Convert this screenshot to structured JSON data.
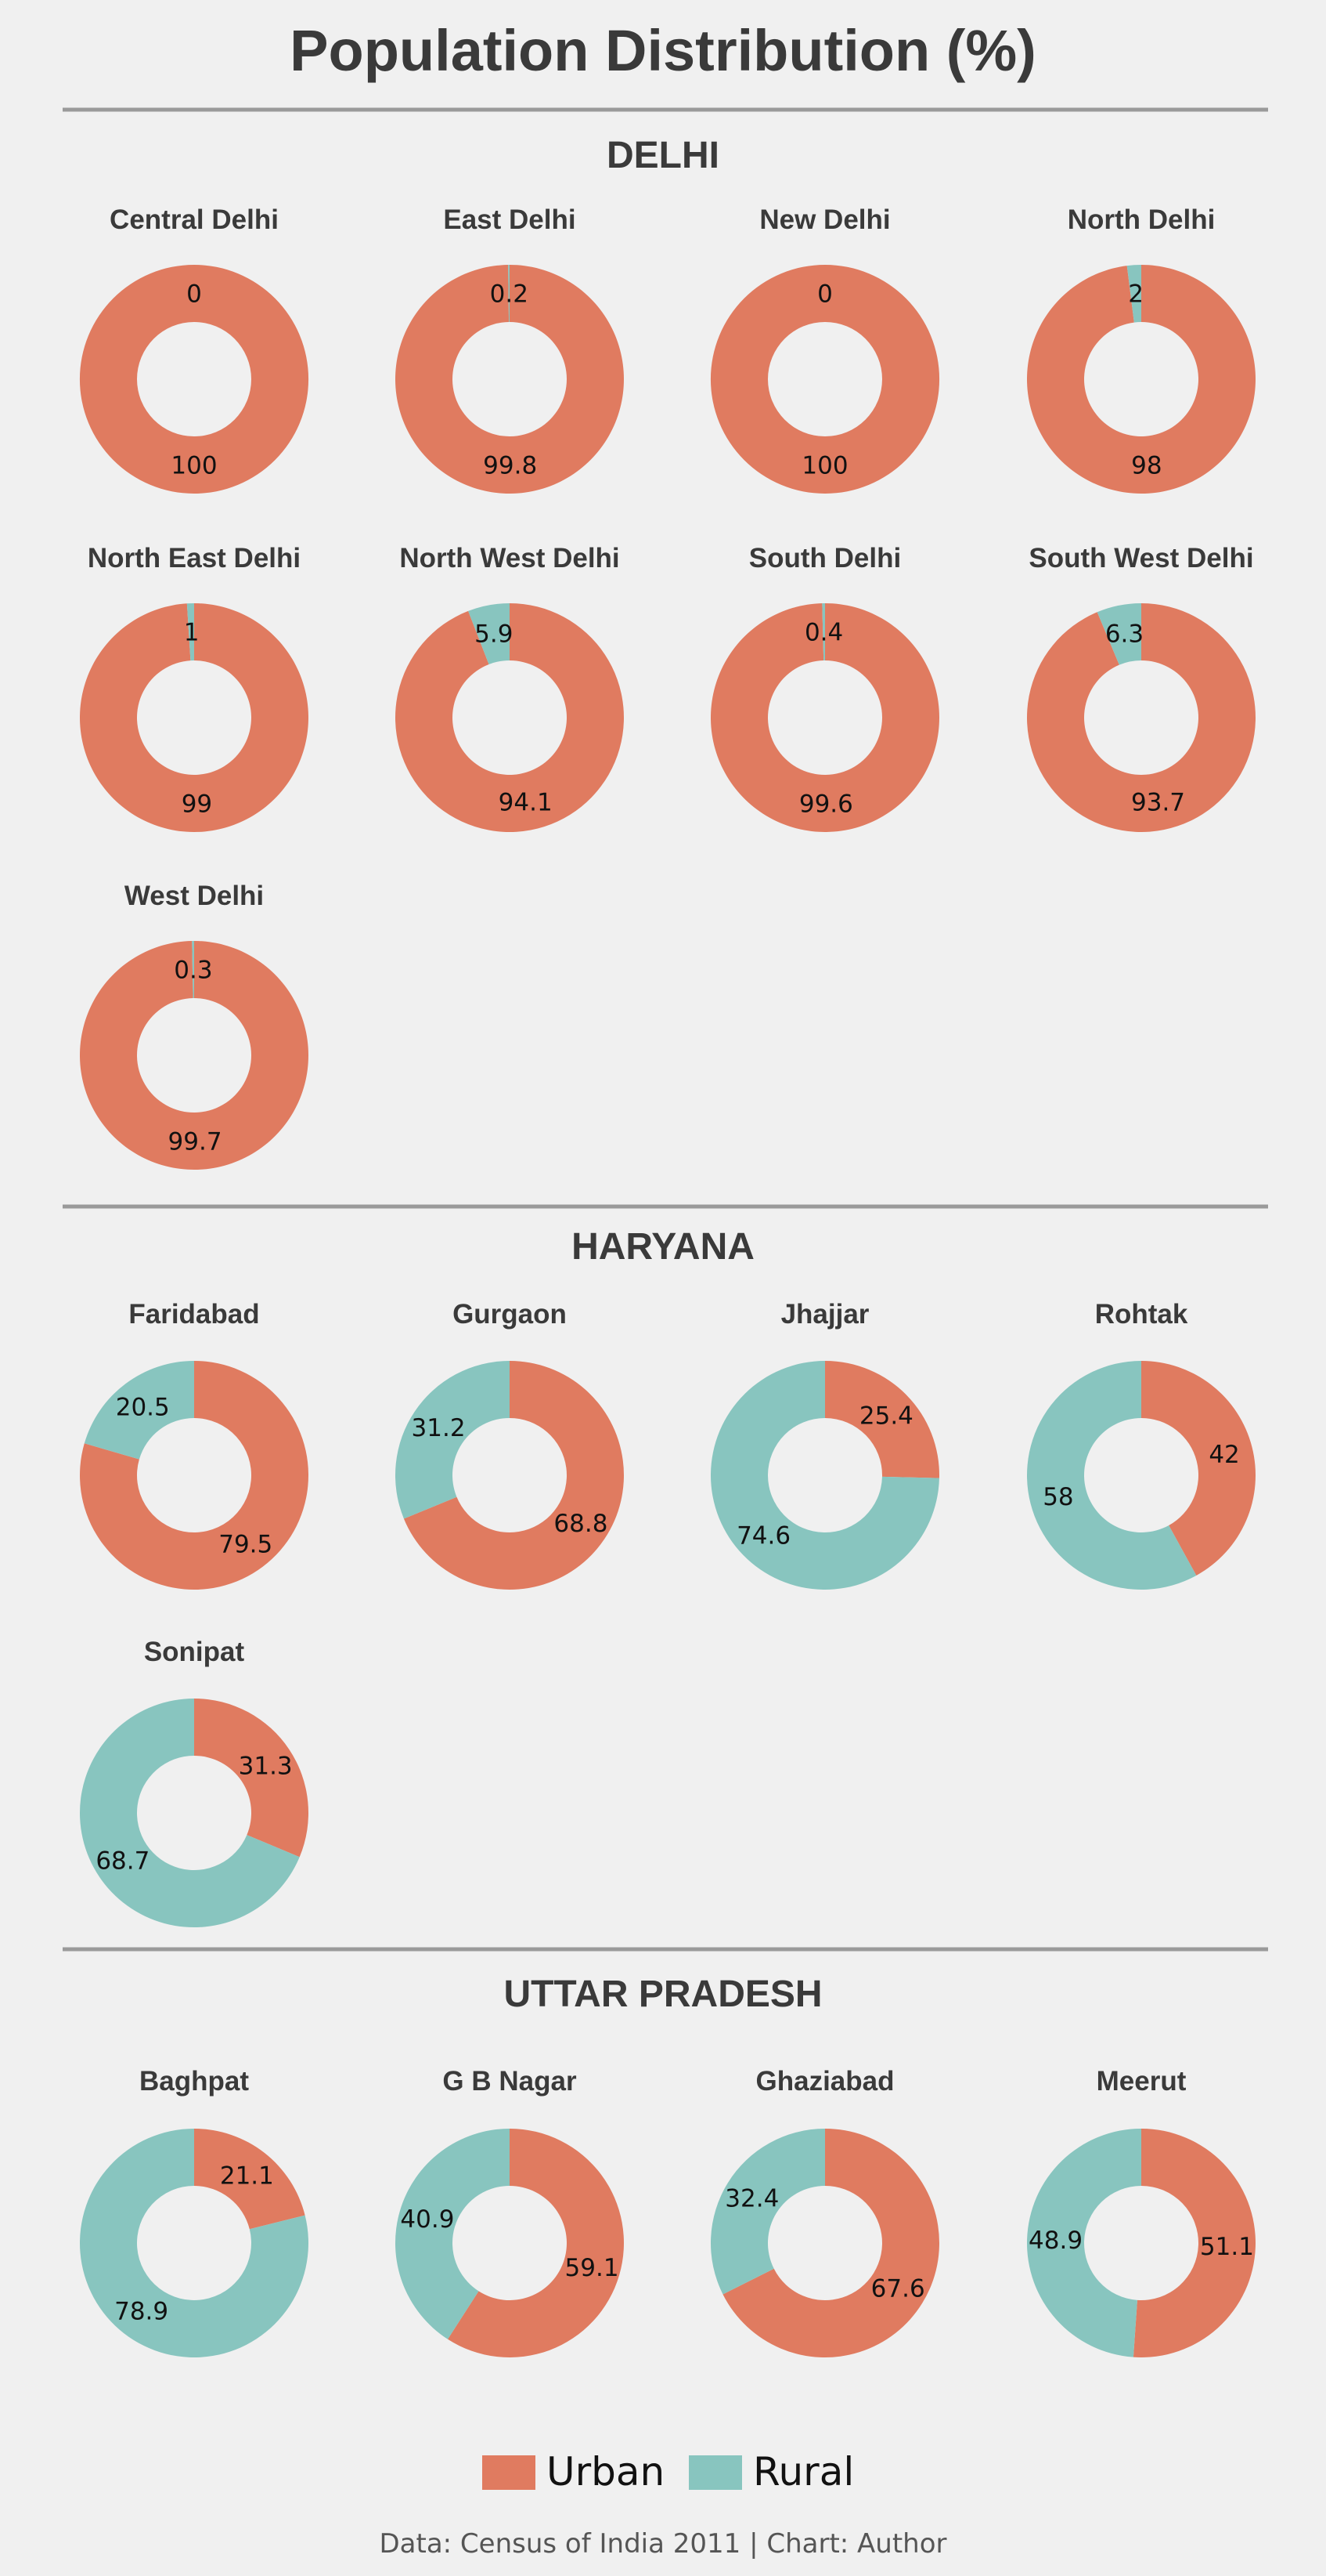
{
  "chart_data": {
    "type": "donut-grid",
    "title": "Population Distribution (%)",
    "legend": {
      "placement": "bottom",
      "items": [
        {
          "name": "Urban",
          "color": "#E07B60"
        },
        {
          "name": "Rural",
          "color": "#88C5BF"
        }
      ]
    },
    "source": "Data: Census of India 2011  |  Chart: Author",
    "colors": {
      "urban": "#E07B60",
      "rural": "#88C5BF",
      "divider": "#9a9a9a",
      "text": "#3a3a3a"
    },
    "sections": [
      {
        "name": "DELHI",
        "districts": [
          {
            "name": "Central Delhi",
            "urban": 100,
            "rural": 0,
            "urban_label": "100",
            "rural_label": "0"
          },
          {
            "name": "East Delhi",
            "urban": 99.8,
            "rural": 0.2,
            "urban_label": "99.8",
            "rural_label": "0.2"
          },
          {
            "name": "New Delhi",
            "urban": 100,
            "rural": 0,
            "urban_label": "100",
            "rural_label": "0"
          },
          {
            "name": "North Delhi",
            "urban": 98,
            "rural": 2,
            "urban_label": "98",
            "rural_label": "2"
          },
          {
            "name": "North East Delhi",
            "urban": 99,
            "rural": 1,
            "urban_label": "99",
            "rural_label": "1"
          },
          {
            "name": "North West Delhi",
            "urban": 94.1,
            "rural": 5.9,
            "urban_label": "94.1",
            "rural_label": "5.9"
          },
          {
            "name": "South Delhi",
            "urban": 99.6,
            "rural": 0.4,
            "urban_label": "99.6",
            "rural_label": "0.4"
          },
          {
            "name": "South West Delhi",
            "urban": 93.7,
            "rural": 6.3,
            "urban_label": "93.7",
            "rural_label": "6.3"
          },
          {
            "name": "West Delhi",
            "urban": 99.7,
            "rural": 0.3,
            "urban_label": "99.7",
            "rural_label": "0.3"
          }
        ]
      },
      {
        "name": "HARYANA",
        "districts": [
          {
            "name": "Faridabad",
            "urban": 79.5,
            "rural": 20.5,
            "urban_label": "79.5",
            "rural_label": "20.5"
          },
          {
            "name": "Gurgaon",
            "urban": 68.8,
            "rural": 31.2,
            "urban_label": "68.8",
            "rural_label": "31.2"
          },
          {
            "name": "Jhajjar",
            "urban": 25.4,
            "rural": 74.6,
            "urban_label": "25.4",
            "rural_label": "74.6"
          },
          {
            "name": "Rohtak",
            "urban": 42,
            "rural": 58,
            "urban_label": "42",
            "rural_label": "58"
          },
          {
            "name": "Sonipat",
            "urban": 31.3,
            "rural": 68.7,
            "urban_label": "31.3",
            "rural_label": "68.7"
          }
        ]
      },
      {
        "name": "UTTAR PRADESH",
        "districts": [
          {
            "name": "Baghpat",
            "urban": 21.1,
            "rural": 78.9,
            "urban_label": "21.1",
            "rural_label": "78.9"
          },
          {
            "name": "G B Nagar",
            "urban": 59.1,
            "rural": 40.9,
            "urban_label": "59.1",
            "rural_label": "40.9"
          },
          {
            "name": "Ghaziabad",
            "urban": 67.6,
            "rural": 32.4,
            "urban_label": "67.6",
            "rural_label": "32.4"
          },
          {
            "name": "Meerut",
            "urban": 51.1,
            "rural": 48.9,
            "urban_label": "51.1",
            "rural_label": "48.9"
          }
        ]
      }
    ]
  }
}
